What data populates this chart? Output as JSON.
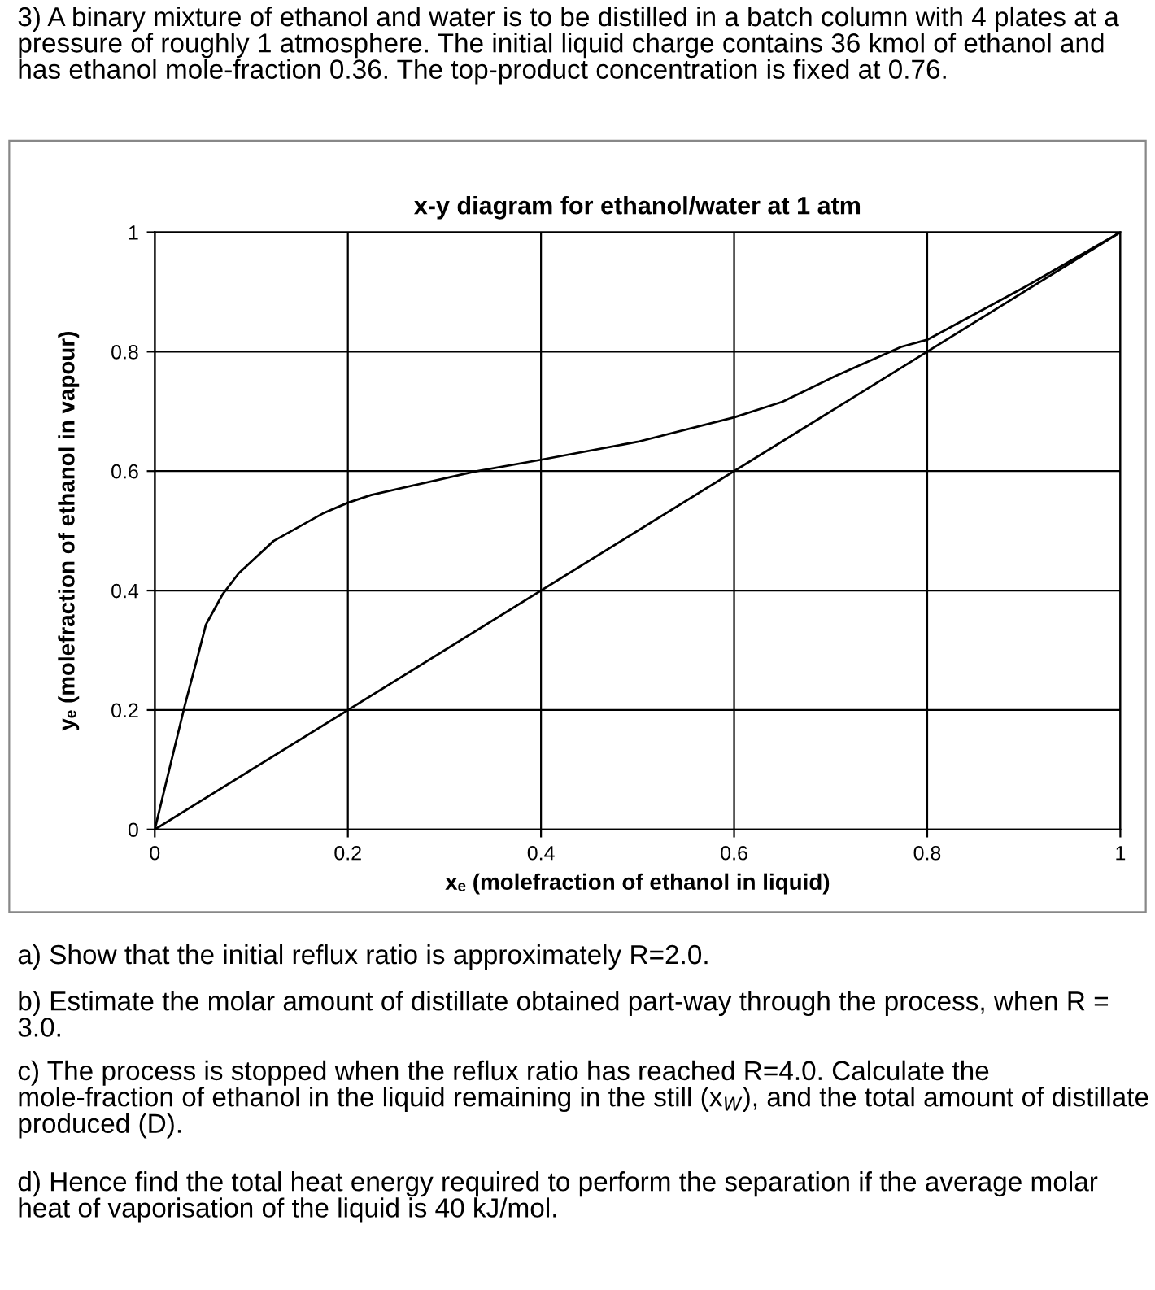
{
  "chart_data": {
    "type": "line",
    "title": "x-y diagram for ethanol/water at 1 atm",
    "xlabel": "xₑ (molefraction of ethanol in liquid)",
    "ylabel": "yₑ (molefraction of ethanol in vapour)",
    "series": [
      {
        "color": "#000000",
        "x": [
          0,
          0.031,
          0.045,
          0.053,
          0.07,
          0.087,
          0.123,
          0.174,
          0.2,
          0.224,
          0.331,
          0.4,
          0.5,
          0.6,
          0.65,
          0.706,
          0.773,
          0.8,
          0.902,
          1
        ],
        "values": [
          0,
          0.207,
          0.293,
          0.343,
          0.393,
          0.429,
          0.483,
          0.529,
          0.547,
          0.56,
          0.599,
          0.619,
          0.649,
          0.69,
          0.716,
          0.76,
          0.808,
          0.82,
          0.909,
          1
        ]
      },
      {
        "color": "#000000",
        "x": [
          0,
          1
        ],
        "values": [
          0,
          1
        ]
      }
    ],
    "xlim": [
      0,
      1
    ],
    "ylim": [
      0,
      1
    ],
    "xticks": [
      0,
      0.2,
      0.4,
      0.6,
      0.8,
      1
    ],
    "yticks": [
      0,
      0.2,
      0.4,
      0.6,
      0.8,
      1
    ],
    "grid": true,
    "marker": "none",
    "line_style": "solid",
    "annotations": [
      "3) A binary mixture of ethanol and water is to be distilled in a batch column with 4 plates at a pressure of roughly 1 atmosphere. The initial liquid charge contains 36 kmol of ethanol and has ethanol mole-fraction 0.36. The top-product concentration is fixed at 0.76.",
      "a) Show that the initial reflux ratio is approximately R=2.0.",
      "b) Estimate the molar amount of distillate obtained part-way through the process, when R = 3.0.",
      "c) The process is stopped when the reflux ratio has reached R=4.0. Calculate the mole-fraction of ethanol in the liquid remaining in the still (x$_{W}$), and the total amount of distillate produced (D).",
      "d) Hence find the total heat energy required to perform the separation if the average molar heat of vaporisation of the liquid is 40 kJ/mol."
    ]
  }
}
